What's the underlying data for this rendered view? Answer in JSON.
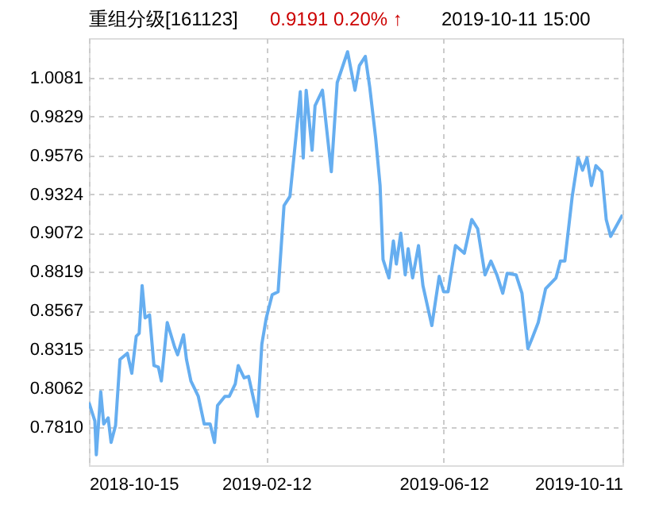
{
  "chart_data": {
    "type": "line",
    "title": "重组分级[161123]",
    "annotations": [
      "0.9191  0.20% ↑",
      "2019-10-11 15:00"
    ],
    "x": [
      "2018-10-15",
      "2018-10-19",
      "2018-10-20",
      "2018-10-23",
      "2018-10-25",
      "2018-10-28",
      "2018-10-30",
      "2018-11-02",
      "2018-11-05",
      "2018-11-10",
      "2018-11-13",
      "2018-11-16",
      "2018-11-18",
      "2018-11-20",
      "2018-11-22",
      "2018-11-25",
      "2018-11-28",
      "2018-12-01",
      "2018-12-03",
      "2018-12-07",
      "2018-12-12",
      "2018-12-14",
      "2018-12-18",
      "2018-12-20",
      "2018-12-23",
      "2018-12-28",
      "2019-01-01",
      "2019-01-05",
      "2019-01-08",
      "2019-01-10",
      "2019-01-15",
      "2019-01-18",
      "2019-01-22",
      "2019-01-24",
      "2019-01-28",
      "2019-01-31",
      "2019-02-06",
      "2019-02-09",
      "2019-02-12",
      "2019-02-16",
      "2019-02-20",
      "2019-02-24",
      "2019-02-28",
      "2019-03-04",
      "2019-03-07",
      "2019-03-09",
      "2019-03-11",
      "2019-03-15",
      "2019-03-17",
      "2019-03-22",
      "2019-03-28",
      "2019-04-01",
      "2019-04-08",
      "2019-04-13",
      "2019-04-16",
      "2019-04-20",
      "2019-04-23",
      "2019-04-27",
      "2019-04-30",
      "2019-05-02",
      "2019-05-06",
      "2019-05-09",
      "2019-05-11",
      "2019-05-14",
      "2019-05-17",
      "2019-05-19",
      "2019-05-22",
      "2019-05-26",
      "2019-05-29",
      "2019-06-04",
      "2019-06-09",
      "2019-06-12",
      "2019-06-15",
      "2019-06-20",
      "2019-06-26",
      "2019-07-01",
      "2019-07-05",
      "2019-07-10",
      "2019-07-14",
      "2019-07-18",
      "2019-07-22",
      "2019-07-25",
      "2019-07-31",
      "2019-08-04",
      "2019-08-08",
      "2019-08-11",
      "2019-08-15",
      "2019-08-20",
      "2019-08-27",
      "2019-08-30",
      "2019-09-02",
      "2019-09-07",
      "2019-09-11",
      "2019-09-14",
      "2019-09-17",
      "2019-09-20",
      "2019-09-23",
      "2019-09-27",
      "2019-09-30",
      "2019-10-03",
      "2019-10-11"
    ],
    "series": [
      {
        "color": "#66aef0",
        "values": [
          0.797,
          0.785,
          0.763,
          0.804,
          0.783,
          0.787,
          0.771,
          0.782,
          0.825,
          0.829,
          0.816,
          0.84,
          0.842,
          0.873,
          0.852,
          0.854,
          0.821,
          0.82,
          0.811,
          0.849,
          0.833,
          0.828,
          0.841,
          0.825,
          0.811,
          0.801,
          0.783,
          0.783,
          0.771,
          0.795,
          0.801,
          0.801,
          0.809,
          0.821,
          0.813,
          0.814,
          0.788,
          0.835,
          0.852,
          0.867,
          0.869,
          0.925,
          0.931,
          0.969,
          0.999,
          0.956,
          1.0,
          0.961,
          0.99,
          1.0,
          0.947,
          1.005,
          1.025,
          1.0,
          1.016,
          1.022,
          1.002,
          0.969,
          0.938,
          0.89,
          0.878,
          0.902,
          0.887,
          0.907,
          0.88,
          0.897,
          0.878,
          0.899,
          0.873,
          0.847,
          0.879,
          0.869,
          0.869,
          0.899,
          0.894,
          0.916,
          0.91,
          0.88,
          0.889,
          0.88,
          0.868,
          0.881,
          0.88,
          0.868,
          0.832,
          0.839,
          0.849,
          0.871,
          0.878,
          0.889,
          0.889,
          0.931,
          0.956,
          0.948,
          0.956,
          0.938,
          0.951,
          0.947,
          0.916,
          0.905,
          0.919
        ]
      }
    ],
    "xlim": [
      "2018-10-15",
      "2019-10-11"
    ],
    "xticks": [
      "2018-10-15",
      "2019-02-12",
      "2019-06-12",
      "2019-10-11"
    ],
    "ylim": [
      0.7562,
      1.0339
    ],
    "yticks": [
      {
        "value": 0.781,
        "label": "0.7810"
      },
      {
        "value": 0.8062,
        "label": "0.8062"
      },
      {
        "value": 0.8315,
        "label": "0.8315"
      },
      0.8567,
      0.8819,
      0.9072,
      0.9324,
      0.9576,
      0.9829,
      1.0081
    ],
    "grid": true,
    "line_style": "solid",
    "marker": "none"
  }
}
